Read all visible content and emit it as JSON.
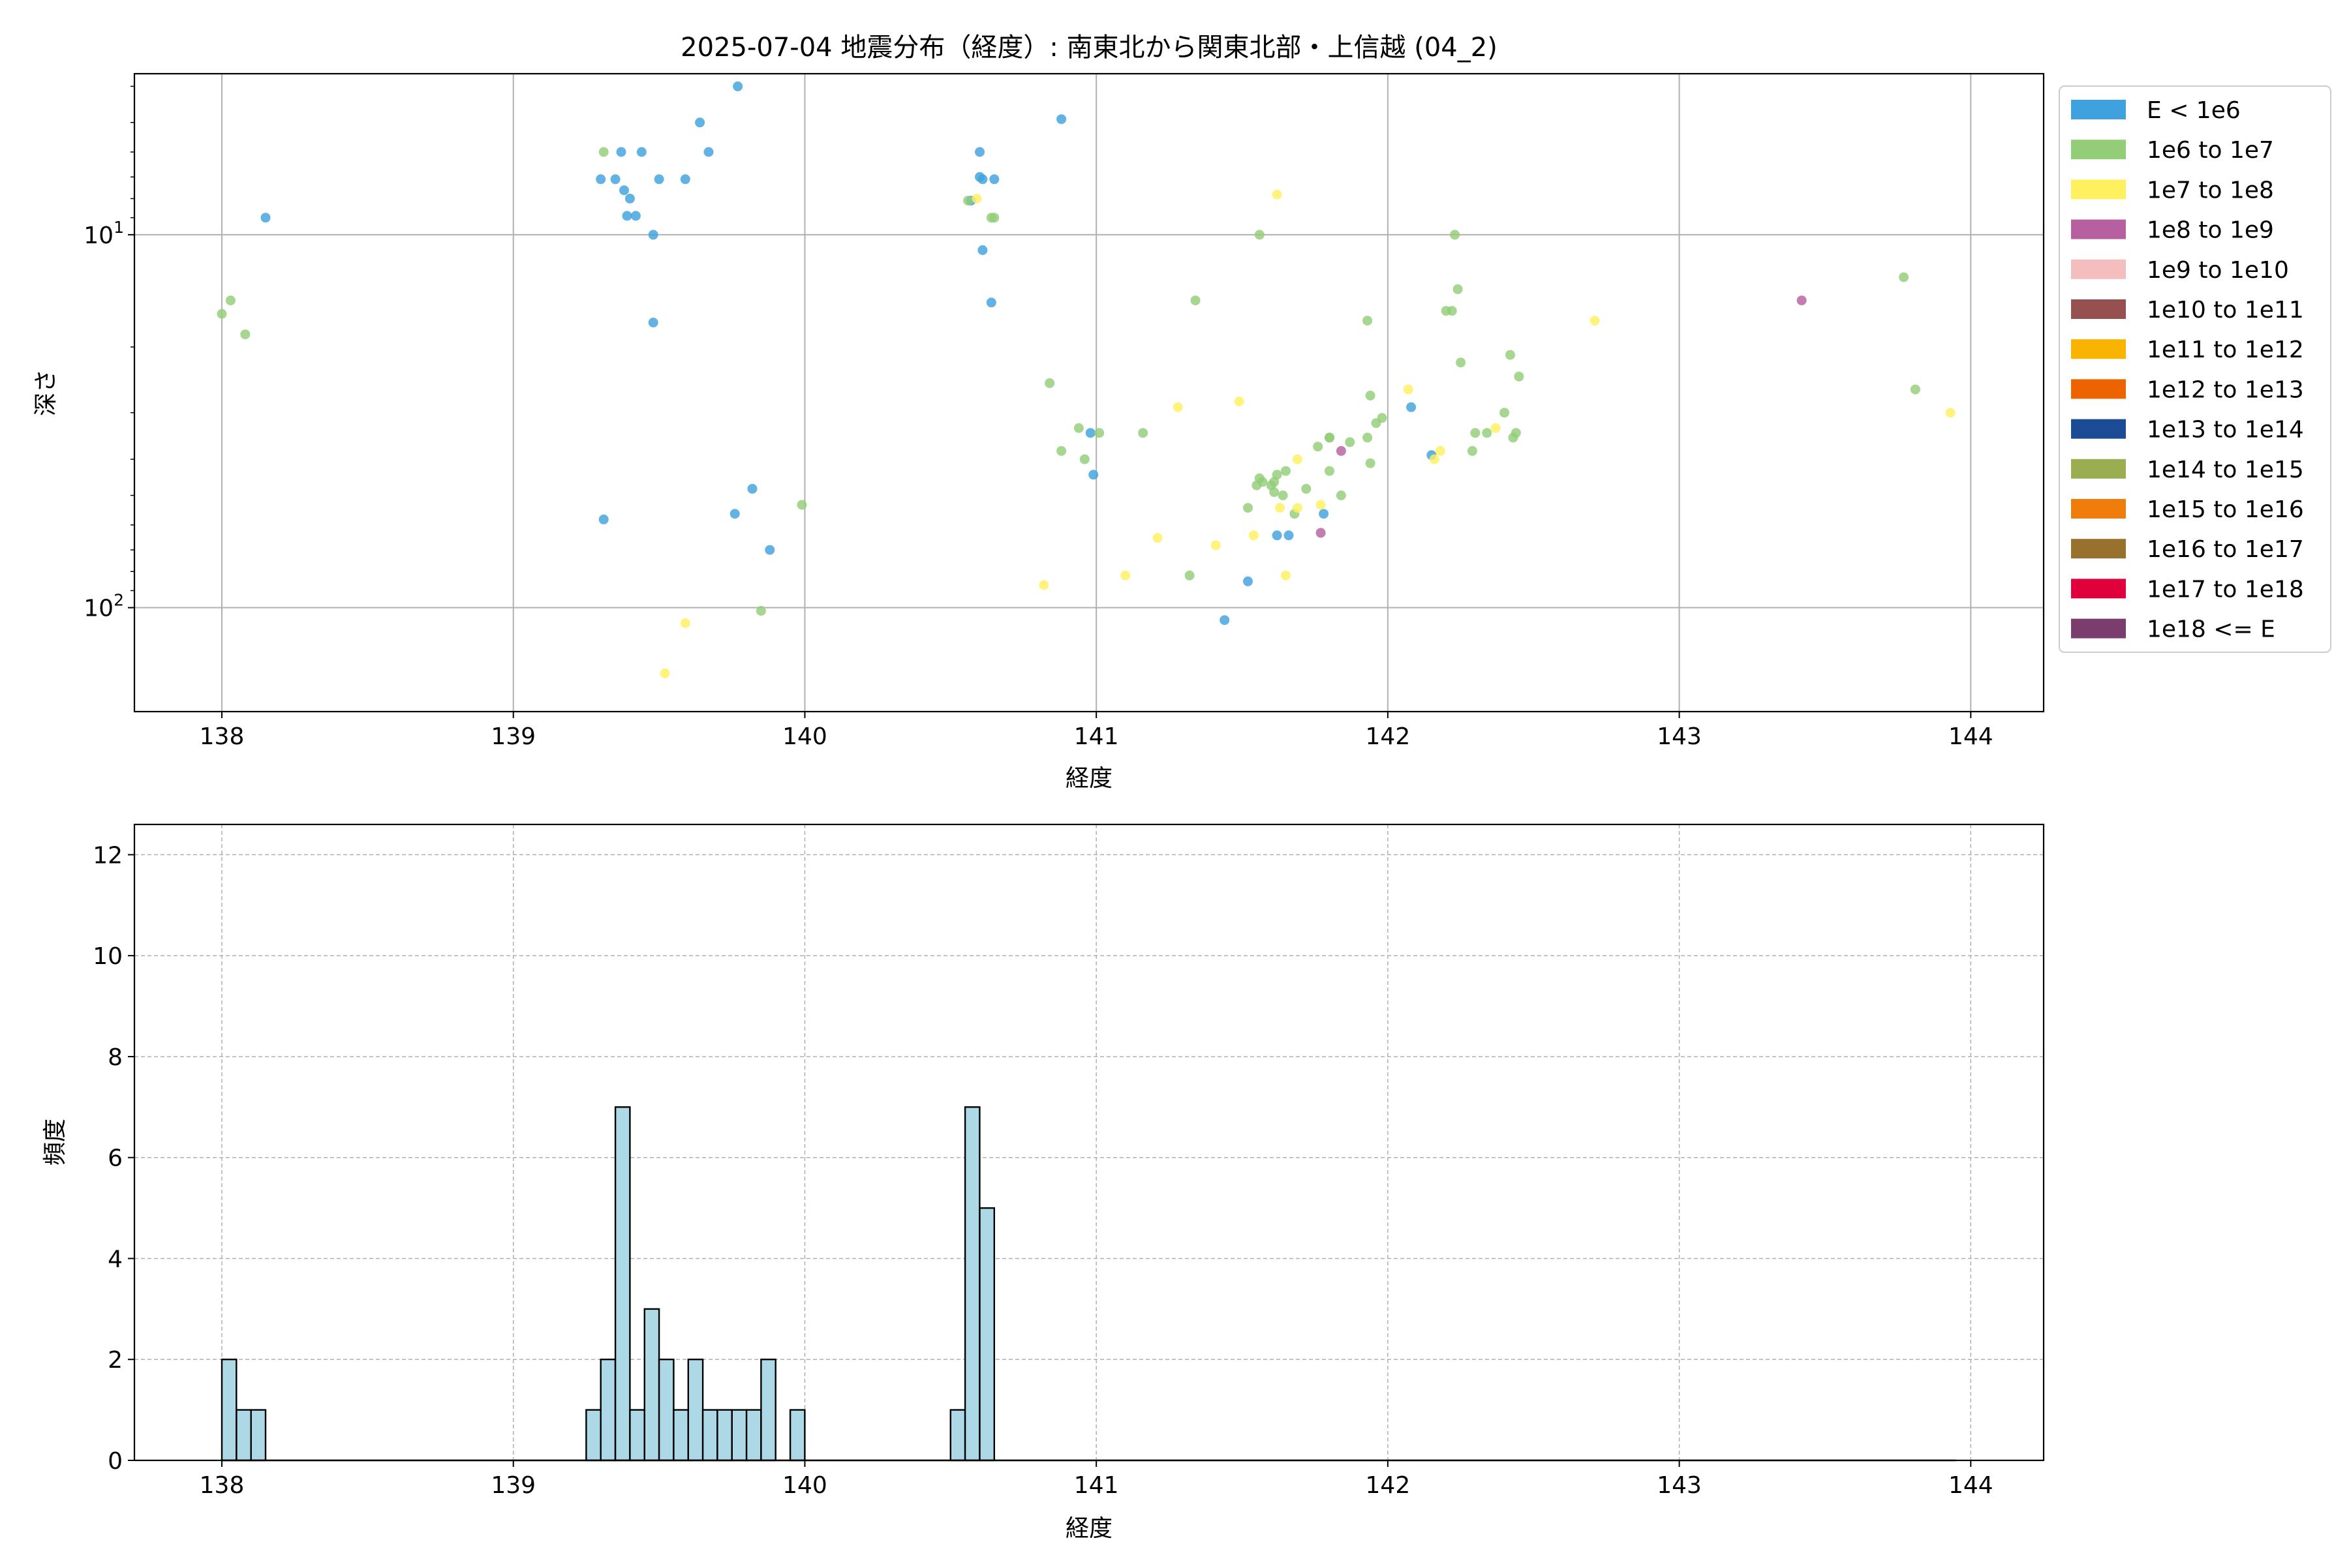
{
  "chart_data": [
    {
      "type": "scatter",
      "title": "2025-07-04 地震分布（経度）: 南東北から関東北部・上信越 (04_2)",
      "xlabel": "経度",
      "ylabel": "深さ",
      "xlim": [
        137.7,
        144.25
      ],
      "ylim": [
        190,
        3.7
      ],
      "yscale": "log",
      "y_inverted": true,
      "grid": true,
      "xticks": [
        "138",
        "139",
        "140",
        "141",
        "142",
        "143",
        "144"
      ],
      "yticks": [
        {
          "value": 10,
          "label": "10^1"
        },
        {
          "value": 100,
          "label": "10^2"
        }
      ],
      "legend_position": "outside-right",
      "legend": [
        {
          "label": "E < 1e6",
          "color": "#3fa2de"
        },
        {
          "label": "1e6 to 1e7",
          "color": "#93cd78"
        },
        {
          "label": "1e7 to 1e8",
          "color": "#fff060"
        },
        {
          "label": "1e8 to 1e9",
          "color": "#b6609f"
        },
        {
          "label": "1e9 to 1e10",
          "color": "#f5bebe"
        },
        {
          "label": "1e10 to 1e11",
          "color": "#965050"
        },
        {
          "label": "1e11 to 1e12",
          "color": "#f8b400"
        },
        {
          "label": "1e12 to 1e13",
          "color": "#ec6300"
        },
        {
          "label": "1e13 to 1e14",
          "color": "#1c4b96"
        },
        {
          "label": "1e14 to 1e15",
          "color": "#9bad51"
        },
        {
          "label": "1e15 to 1e16",
          "color": "#f07c0c"
        },
        {
          "label": "1e16 to 1e17",
          "color": "#98712f"
        },
        {
          "label": "1e17 to 1e18",
          "color": "#e0003c"
        },
        {
          "label": "1e18 <= E",
          "color": "#7a3d6e"
        }
      ],
      "series": [
        {
          "legend_index": 0,
          "points": [
            [
              138.15,
              9.0
            ],
            [
              139.3,
              7.1
            ],
            [
              139.35,
              7.1
            ],
            [
              139.37,
              6.0
            ],
            [
              139.38,
              7.6
            ],
            [
              139.39,
              8.9
            ],
            [
              139.4,
              8.0
            ],
            [
              139.42,
              8.9
            ],
            [
              139.44,
              6.0
            ],
            [
              139.48,
              10.0
            ],
            [
              139.48,
              17.2
            ],
            [
              139.5,
              7.1
            ],
            [
              139.59,
              7.1
            ],
            [
              139.64,
              5.0
            ],
            [
              139.67,
              6.0
            ],
            [
              139.77,
              4.0
            ],
            [
              139.31,
              58.0
            ],
            [
              139.76,
              56.0
            ],
            [
              139.82,
              48.0
            ],
            [
              139.88,
              70.0
            ],
            [
              140.57,
              8.1
            ],
            [
              140.6,
              6.0
            ],
            [
              140.6,
              7.0
            ],
            [
              140.61,
              7.1
            ],
            [
              140.61,
              11.0
            ],
            [
              140.64,
              15.2
            ],
            [
              140.65,
              7.1
            ],
            [
              140.88,
              4.9
            ],
            [
              140.98,
              34.0
            ],
            [
              140.99,
              44.0
            ],
            [
              141.52,
              85.0
            ],
            [
              141.62,
              64.0
            ],
            [
              141.66,
              64.0
            ],
            [
              141.78,
              56.0
            ],
            [
              141.44,
              108.0
            ],
            [
              142.08,
              29.0
            ],
            [
              142.15,
              39.0
            ]
          ]
        },
        {
          "legend_index": 1,
          "points": [
            [
              138.0,
              16.3
            ],
            [
              138.03,
              15.0
            ],
            [
              138.08,
              18.5
            ],
            [
              139.31,
              6.0
            ],
            [
              139.85,
              102.0
            ],
            [
              139.99,
              53.0
            ],
            [
              140.56,
              8.1
            ],
            [
              140.64,
              9.0
            ],
            [
              140.65,
              9.0
            ],
            [
              140.84,
              25.0
            ],
            [
              140.88,
              38.0
            ],
            [
              140.94,
              33.0
            ],
            [
              140.96,
              40.0
            ],
            [
              141.01,
              34.0
            ],
            [
              141.16,
              34.0
            ],
            [
              141.32,
              82.0
            ],
            [
              141.34,
              15.0
            ],
            [
              141.52,
              54.0
            ],
            [
              141.55,
              47.0
            ],
            [
              141.56,
              45.0
            ],
            [
              141.57,
              46.0
            ],
            [
              141.6,
              47.0
            ],
            [
              141.61,
              49.0
            ],
            [
              141.62,
              44.0
            ],
            [
              141.64,
              50.0
            ],
            [
              141.65,
              43.0
            ],
            [
              141.56,
              10.0
            ],
            [
              141.61,
              46.0
            ],
            [
              141.68,
              56.0
            ],
            [
              141.72,
              48.0
            ],
            [
              141.76,
              37.0
            ],
            [
              141.8,
              43.0
            ],
            [
              141.8,
              35.0
            ],
            [
              141.8,
              35.0
            ],
            [
              141.84,
              50.0
            ],
            [
              141.87,
              36.0
            ],
            [
              141.93,
              35.0
            ],
            [
              141.94,
              27.0
            ],
            [
              141.96,
              32.0
            ],
            [
              141.98,
              31.0
            ],
            [
              141.93,
              17.0
            ],
            [
              141.94,
              41.0
            ],
            [
              142.2,
              16.0
            ],
            [
              142.22,
              16.0
            ],
            [
              142.23,
              10.0
            ],
            [
              142.24,
              14.0
            ],
            [
              142.25,
              22.0
            ],
            [
              142.29,
              38.0
            ],
            [
              142.3,
              34.0
            ],
            [
              142.34,
              34.0
            ],
            [
              142.4,
              30.0
            ],
            [
              142.42,
              21.0
            ],
            [
              142.43,
              35.0
            ],
            [
              142.44,
              34.0
            ],
            [
              142.45,
              24.0
            ],
            [
              143.77,
              13.0
            ],
            [
              143.81,
              26.0
            ]
          ]
        },
        {
          "legend_index": 2,
          "points": [
            [
              139.52,
              150.0
            ],
            [
              139.59,
              110.0
            ],
            [
              140.59,
              8.0
            ],
            [
              140.82,
              87.0
            ],
            [
              141.1,
              82.0
            ],
            [
              141.21,
              65.0
            ],
            [
              141.28,
              29.0
            ],
            [
              141.41,
              68.0
            ],
            [
              141.49,
              28.0
            ],
            [
              141.54,
              64.0
            ],
            [
              141.62,
              7.8
            ],
            [
              141.63,
              54.0
            ],
            [
              141.65,
              82.0
            ],
            [
              141.69,
              54.0
            ],
            [
              141.69,
              40.0
            ],
            [
              141.77,
              53.0
            ],
            [
              142.07,
              26.0
            ],
            [
              142.16,
              40.0
            ],
            [
              142.18,
              38.0
            ],
            [
              142.37,
              33.0
            ],
            [
              142.71,
              17.0
            ],
            [
              143.93,
              30.0
            ]
          ]
        },
        {
          "legend_index": 3,
          "points": [
            [
              141.77,
              63.0
            ],
            [
              141.84,
              38.0
            ],
            [
              143.42,
              15.0
            ]
          ]
        }
      ]
    },
    {
      "type": "bar",
      "title": "",
      "xlabel": "経度",
      "ylabel": "頻度",
      "xlim": [
        137.7,
        144.25
      ],
      "ylim": [
        0,
        12.6
      ],
      "grid": true,
      "bar_color": "#add8e6",
      "bin_start": 138.0,
      "bin_width": 0.05,
      "xticks": [
        "138",
        "139",
        "140",
        "141",
        "142",
        "143",
        "144"
      ],
      "yticks": [
        "0",
        "2",
        "4",
        "6",
        "8",
        "10",
        "12"
      ],
      "values": [
        2,
        1,
        1,
        0,
        0,
        0,
        0,
        0,
        0,
        0,
        0,
        0,
        0,
        0,
        0,
        0,
        0,
        0,
        0,
        0,
        0,
        0,
        0,
        0,
        0,
        1,
        2,
        7,
        1,
        3,
        2,
        1,
        2,
        1,
        1,
        1,
        1,
        2,
        0,
        1,
        0,
        0,
        0,
        0,
        0,
        0,
        0,
        0,
        0,
        0,
        1,
        7,
        5,
        0,
        0,
        0,
        0,
        0,
        0,
        0,
        0,
        0,
        0,
        0,
        0,
        0,
        0,
        0,
        0,
        0,
        0,
        0,
        0,
        0,
        0,
        0,
        0,
        0,
        0,
        0,
        0,
        0,
        0,
        0,
        0,
        0,
        0,
        0,
        0,
        0,
        0,
        0,
        0,
        0,
        0,
        0,
        0,
        0,
        0,
        0,
        0,
        0,
        0,
        0,
        0,
        0,
        0,
        0,
        0,
        0,
        0,
        0,
        0,
        0,
        0,
        0,
        0,
        0,
        0
      ]
    }
  ]
}
